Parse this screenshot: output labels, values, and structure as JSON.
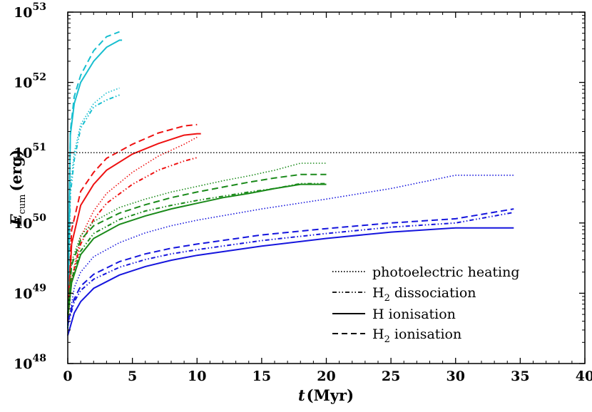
{
  "chart_data": {
    "type": "line",
    "title": "",
    "xlabel": {
      "main": "t",
      "unit": "(Myr)"
    },
    "ylabel": {
      "main": "E",
      "sub": "cum",
      "unit": "(erg)"
    },
    "xlim": [
      0,
      40
    ],
    "ylim_log10": [
      48,
      53
    ],
    "x_ticks": [
      "0",
      "5",
      "10",
      "15",
      "20",
      "25",
      "30",
      "35",
      "40"
    ],
    "y_ticks": [
      {
        "base": "10",
        "exp": "48"
      },
      {
        "base": "10",
        "exp": "49"
      },
      {
        "base": "10",
        "exp": "50"
      },
      {
        "base": "10",
        "exp": "51"
      },
      {
        "base": "10",
        "exp": "52"
      },
      {
        "base": "10",
        "exp": "53"
      }
    ],
    "reference_line": {
      "y_log10": 51,
      "style": "dotted"
    },
    "colors": {
      "cyan": "#17becf",
      "red": "#ee1111",
      "green": "#1a8a1a",
      "blue": "#1515dd",
      "black": "#000000"
    },
    "legend": [
      {
        "label": "photoelectric heating",
        "style": "dotted"
      },
      {
        "label_main": "H",
        "label_sub": "2",
        "label_rest": " dissociation",
        "style": "dashdotdot"
      },
      {
        "label": "H ionisation",
        "style": "solid"
      },
      {
        "label_main": "H",
        "label_sub": "2",
        "label_rest": " ionisation",
        "style": "dashed"
      }
    ],
    "series": [
      {
        "name": "cyan H2 ionisation",
        "color": "cyan",
        "style": "dashed",
        "x": [
          0,
          0.2,
          0.5,
          1,
          2,
          3,
          4
        ],
        "y_log10": [
          48.5,
          51.3,
          51.8,
          52.1,
          52.45,
          52.65,
          52.72
        ]
      },
      {
        "name": "cyan H ionisation",
        "color": "cyan",
        "style": "solid",
        "x": [
          0,
          0.2,
          0.5,
          1,
          2,
          3,
          4,
          4.2
        ],
        "y_log10": [
          48.5,
          51.25,
          51.7,
          52.0,
          52.3,
          52.5,
          52.6,
          52.6
        ]
      },
      {
        "name": "cyan photoelectric heating",
        "color": "cyan",
        "style": "dotted",
        "x": [
          0,
          0.2,
          0.5,
          1,
          2,
          3,
          4
        ],
        "y_log10": [
          48.5,
          50.5,
          51.0,
          51.4,
          51.7,
          51.85,
          51.92
        ]
      },
      {
        "name": "cyan H2 dissociation",
        "color": "cyan",
        "style": "dashdotdot",
        "x": [
          0,
          0.2,
          0.5,
          1,
          2,
          3,
          4
        ],
        "y_log10": [
          48.5,
          50.4,
          50.9,
          51.35,
          51.65,
          51.75,
          51.82
        ]
      },
      {
        "name": "red H2 ionisation",
        "color": "red",
        "style": "dashed",
        "x": [
          0,
          0.3,
          1,
          2,
          3,
          5,
          7,
          9,
          10
        ],
        "y_log10": [
          48.6,
          49.9,
          50.45,
          50.72,
          50.92,
          51.12,
          51.28,
          51.38,
          51.4
        ]
      },
      {
        "name": "red H ionisation",
        "color": "red",
        "style": "solid",
        "x": [
          0,
          0.3,
          1,
          2,
          3,
          5,
          7,
          9,
          10,
          10.3
        ],
        "y_log10": [
          48.6,
          49.7,
          50.25,
          50.55,
          50.75,
          50.98,
          51.13,
          51.25,
          51.27,
          51.27
        ]
      },
      {
        "name": "red photoelectric heating",
        "color": "red",
        "style": "dotted",
        "x": [
          0,
          0.3,
          1,
          2,
          3,
          5,
          7,
          9,
          10
        ],
        "y_log10": [
          48.6,
          49.2,
          49.8,
          50.17,
          50.42,
          50.72,
          50.95,
          51.12,
          51.22
        ]
      },
      {
        "name": "red H2 dissociation",
        "color": "red",
        "style": "dashdotdot",
        "x": [
          0,
          0.3,
          1,
          2,
          3,
          5,
          7,
          9,
          10
        ],
        "y_log10": [
          48.6,
          49.2,
          49.7,
          50.05,
          50.28,
          50.55,
          50.75,
          50.88,
          50.93
        ]
      },
      {
        "name": "green photoelectric heating",
        "color": "green",
        "style": "dotted",
        "x": [
          0,
          0.3,
          1,
          2,
          4,
          6,
          8,
          10,
          12,
          14,
          16,
          18,
          20
        ],
        "y_log10": [
          48.7,
          49.45,
          49.82,
          50.02,
          50.22,
          50.34,
          50.44,
          50.52,
          50.6,
          50.67,
          50.75,
          50.85,
          50.85
        ]
      },
      {
        "name": "green H2 ionisation",
        "color": "green",
        "style": "dashed",
        "x": [
          0,
          0.3,
          1,
          2,
          4,
          6,
          8,
          10,
          12,
          14,
          16,
          18,
          20
        ],
        "y_log10": [
          48.7,
          49.4,
          49.76,
          49.96,
          50.14,
          50.26,
          50.36,
          50.44,
          50.51,
          50.58,
          50.64,
          50.69,
          50.69
        ]
      },
      {
        "name": "green H ionisation",
        "color": "green",
        "style": "solid",
        "x": [
          0,
          0.3,
          1,
          2,
          4,
          6,
          8,
          10,
          12,
          14,
          16,
          18,
          20
        ],
        "y_log10": [
          48.65,
          49.15,
          49.55,
          49.78,
          49.98,
          50.1,
          50.2,
          50.28,
          50.36,
          50.42,
          50.49,
          50.55,
          50.55
        ]
      },
      {
        "name": "green H2 dissociation",
        "color": "green",
        "style": "dashdotdot",
        "x": [
          0,
          0.3,
          1,
          2,
          4,
          6,
          8,
          10,
          12,
          14,
          16,
          18,
          20
        ],
        "y_log10": [
          48.7,
          49.2,
          49.6,
          49.85,
          50.05,
          50.17,
          50.25,
          50.32,
          50.38,
          50.44,
          50.49,
          50.56,
          50.56
        ]
      },
      {
        "name": "blue photoelectric heating",
        "color": "blue",
        "style": "dotted",
        "x": [
          0,
          0.5,
          1,
          2,
          4,
          6,
          8,
          10,
          15,
          20,
          25,
          30,
          34.5
        ],
        "y_log10": [
          48.5,
          49.08,
          49.3,
          49.52,
          49.72,
          49.86,
          49.96,
          50.04,
          50.2,
          50.34,
          50.49,
          50.68,
          50.68
        ]
      },
      {
        "name": "blue H2 ionisation",
        "color": "blue",
        "style": "dashed",
        "x": [
          0,
          0.5,
          1,
          2,
          4,
          6,
          8,
          10,
          15,
          20,
          25,
          30,
          34.5
        ],
        "y_log10": [
          48.6,
          48.92,
          49.1,
          49.27,
          49.45,
          49.56,
          49.64,
          49.7,
          49.83,
          49.92,
          50.0,
          50.06,
          50.2
        ]
      },
      {
        "name": "blue H2 dissociation",
        "color": "blue",
        "style": "dashdotdot",
        "x": [
          0,
          0.5,
          1,
          2,
          4,
          6,
          8,
          10,
          15,
          20,
          25,
          30,
          34.5
        ],
        "y_log10": [
          48.55,
          48.88,
          49.04,
          49.2,
          49.37,
          49.48,
          49.56,
          49.62,
          49.75,
          49.85,
          49.94,
          50.0,
          50.15
        ]
      },
      {
        "name": "blue H ionisation",
        "color": "blue",
        "style": "solid",
        "x": [
          0,
          0.5,
          1,
          2,
          4,
          6,
          8,
          10,
          15,
          20,
          25,
          30,
          34.5
        ],
        "y_log10": [
          48.4,
          48.72,
          48.88,
          49.07,
          49.26,
          49.38,
          49.47,
          49.54,
          49.67,
          49.78,
          49.87,
          49.93,
          49.93
        ]
      }
    ]
  }
}
